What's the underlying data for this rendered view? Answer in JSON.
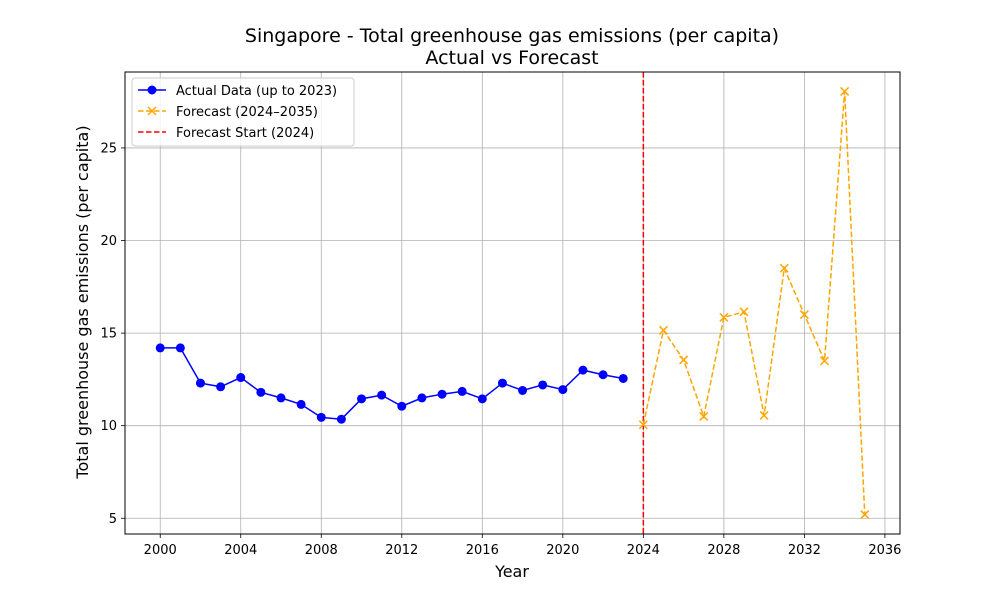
{
  "chart_data": {
    "type": "line",
    "title": "Singapore - Total greenhouse gas emissions (per capita)",
    "subtitle": "Actual vs Forecast",
    "xlabel": "Year",
    "ylabel": "Total greenhouse gas emissions (per capita)",
    "xlim": [
      1998.25,
      2036.75
    ],
    "ylim": [
      4.15,
      29.1
    ],
    "xticks": [
      2000,
      2004,
      2008,
      2012,
      2016,
      2020,
      2024,
      2028,
      2032,
      2036
    ],
    "yticks": [
      5,
      10,
      15,
      20,
      25
    ],
    "grid": true,
    "legend_position": "upper-left",
    "series": [
      {
        "name": "Actual Data (up to 2023)",
        "color": "#0000ff",
        "linestyle": "solid",
        "marker": "circle",
        "x": [
          2000,
          2001,
          2002,
          2003,
          2004,
          2005,
          2006,
          2007,
          2008,
          2009,
          2010,
          2011,
          2012,
          2013,
          2014,
          2015,
          2016,
          2017,
          2018,
          2019,
          2020,
          2021,
          2022,
          2023
        ],
        "y": [
          14.2,
          14.2,
          12.3,
          12.1,
          12.6,
          11.8,
          11.5,
          11.15,
          10.45,
          10.35,
          11.45,
          11.65,
          11.05,
          11.5,
          11.7,
          11.85,
          11.45,
          12.3,
          11.9,
          12.2,
          11.95,
          13.0,
          12.75,
          12.55
        ]
      },
      {
        "name": "Forecast (2024–2035)",
        "color": "#ffa500",
        "linestyle": "dashed",
        "marker": "x",
        "x": [
          2024,
          2025,
          2026,
          2027,
          2028,
          2029,
          2030,
          2031,
          2032,
          2033,
          2034,
          2035
        ],
        "y": [
          10.05,
          15.15,
          13.55,
          10.5,
          15.85,
          16.15,
          10.55,
          18.5,
          16.0,
          13.5,
          28.05,
          5.2
        ]
      }
    ],
    "vlines": [
      {
        "name": "Forecast Start (2024)",
        "x": 2024,
        "color": "#ff0000",
        "linestyle": "dashed"
      }
    ]
  }
}
